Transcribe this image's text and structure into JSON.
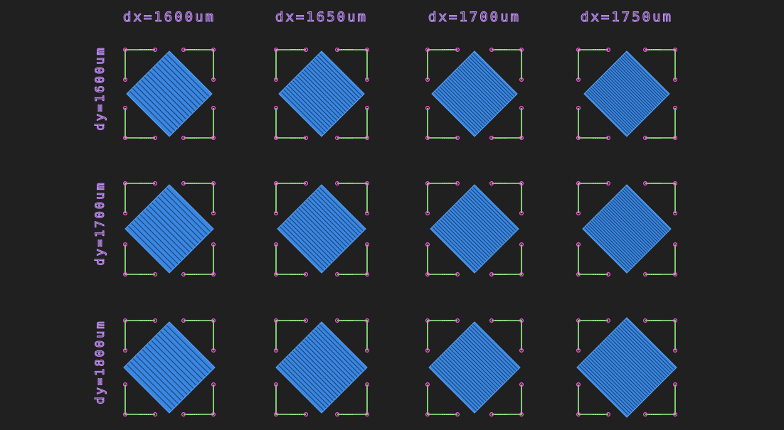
{
  "columns": [
    {
      "label": "dx=1600um",
      "pitch": 1600
    },
    {
      "label": "dx=1650um",
      "pitch": 1650
    },
    {
      "label": "dx=1700um",
      "pitch": 1700
    },
    {
      "label": "dx=1750um",
      "pitch": 1750
    }
  ],
  "rows": [
    {
      "label": "dy=1600um",
      "pitch": 1600
    },
    {
      "label": "dy=1700um",
      "pitch": 1700
    },
    {
      "label": "dy=1800um",
      "pitch": 1800
    }
  ],
  "colors": {
    "background": "#202020",
    "label": "#c792ff",
    "diamond": "#3a86e0",
    "diamond_lines": "#163e6e",
    "bracket": "#9cf58a",
    "pin": "#ff5ce6"
  }
}
